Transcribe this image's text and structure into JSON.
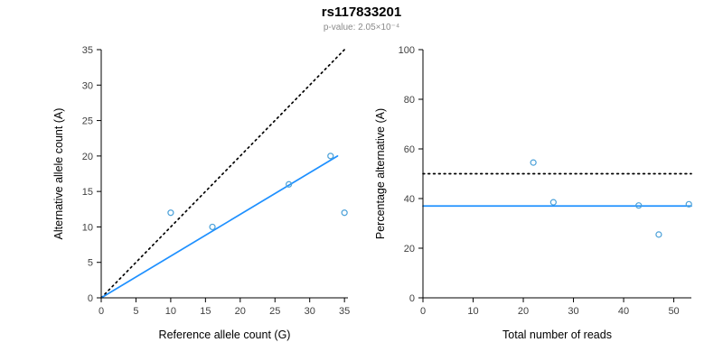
{
  "header": {
    "title": "rs117833201",
    "subtitle": "p-value: 2.05×10⁻⁴"
  },
  "colors": {
    "fit_line": "#1e90ff",
    "point_stroke": "#4aa0d8",
    "reference_line": "#000000",
    "axis": "#000000",
    "tick_label": "#404040",
    "subtitle_gray": "#8a8a8a"
  },
  "chart_data": [
    {
      "name": "allele-count-scatter",
      "type": "scatter",
      "xlabel": "Reference allele count (G)",
      "ylabel": "Alternative allele count (A)",
      "xlim": [
        0,
        35.5
      ],
      "ylim": [
        0,
        35
      ],
      "xticks": [
        0,
        5,
        10,
        15,
        20,
        25,
        30,
        35
      ],
      "yticks": [
        0,
        5,
        10,
        15,
        20,
        25,
        30,
        35
      ],
      "grid": false,
      "points": [
        [
          10,
          12
        ],
        [
          16,
          10
        ],
        [
          27,
          16
        ],
        [
          33,
          20
        ],
        [
          35,
          12
        ]
      ],
      "lines": [
        {
          "name": "identity-line",
          "x1": 0,
          "y1": 0,
          "x2": 35,
          "y2": 35,
          "color": "#000000",
          "dashed": true
        },
        {
          "name": "fit-line",
          "x1": 0,
          "y1": 0,
          "x2": 34,
          "y2": 20,
          "color": "#1e90ff",
          "dashed": false
        }
      ],
      "point_color": "#4aa0d8"
    },
    {
      "name": "percentage-alternative-scatter",
      "type": "scatter",
      "xlabel": "Total number of reads",
      "ylabel": "Percentage alternative (A)",
      "xlim": [
        0,
        53.5
      ],
      "ylim": [
        0,
        100
      ],
      "xticks": [
        0,
        10,
        20,
        30,
        40,
        50
      ],
      "yticks": [
        0,
        20,
        40,
        60,
        80,
        100
      ],
      "grid": false,
      "points": [
        [
          22,
          54.5
        ],
        [
          26,
          38.5
        ],
        [
          43,
          37.2
        ],
        [
          47,
          25.5
        ],
        [
          53,
          37.7
        ]
      ],
      "lines": [
        {
          "name": "fifty-percent-reference-line",
          "x1": 0,
          "y1": 50,
          "x2": 53.5,
          "y2": 50,
          "color": "#000000",
          "dashed": true
        },
        {
          "name": "mean-percentage-fit-line",
          "x1": 0,
          "y1": 37,
          "x2": 53.5,
          "y2": 37,
          "color": "#1e90ff",
          "dashed": false
        }
      ],
      "point_color": "#4aa0d8"
    }
  ]
}
